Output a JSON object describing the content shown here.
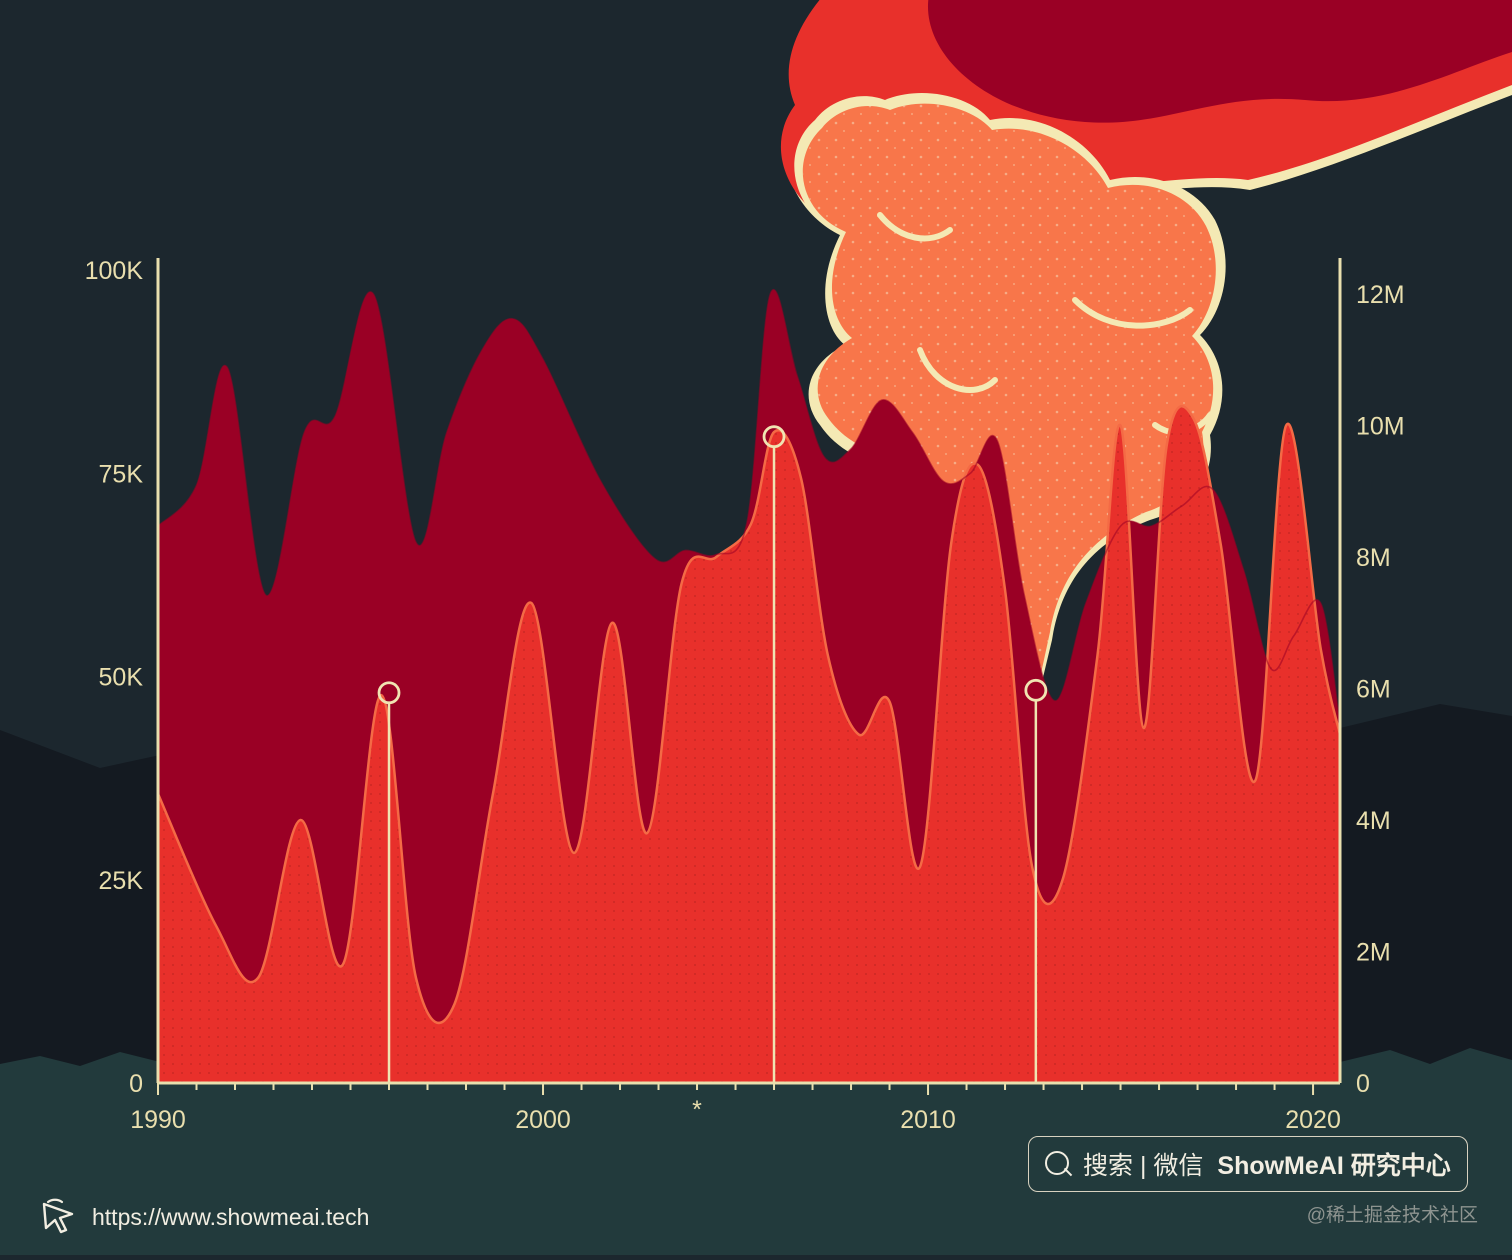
{
  "chart_data": {
    "type": "area",
    "x_axis": {
      "min": 1990,
      "max": 2020.7,
      "ticks": [
        {
          "value": 1990,
          "label": "1990"
        },
        {
          "value": 2000,
          "label": "2000"
        },
        {
          "value": 2010,
          "label": "2010"
        },
        {
          "value": 2020,
          "label": "2020"
        }
      ],
      "marker": {
        "value": 2004,
        "label": "*"
      }
    },
    "y_left": {
      "min": 0,
      "max": 100000,
      "ticks": [
        {
          "value": 0,
          "label": "0"
        },
        {
          "value": 25000,
          "label": "25K"
        },
        {
          "value": 50000,
          "label": "50K"
        },
        {
          "value": 75000,
          "label": "75K"
        },
        {
          "value": 100000,
          "label": "100K"
        }
      ]
    },
    "y_right": {
      "min": 0,
      "max": 12000000,
      "ticks": [
        {
          "value": 0,
          "label": "0"
        },
        {
          "value": 2000000,
          "label": "2M"
        },
        {
          "value": 4000000,
          "label": "4M"
        },
        {
          "value": 6000000,
          "label": "6M"
        },
        {
          "value": 8000000,
          "label": "8M"
        },
        {
          "value": 10000000,
          "label": "10M"
        },
        {
          "value": 12000000,
          "label": "12M"
        }
      ]
    },
    "series": [
      {
        "axis": "left",
        "color": "#9a0025",
        "x": [
          1990,
          1991,
          1991.8,
          1992.8,
          1993.8,
          1994.6,
          1995.6,
          1996.7,
          1997.5,
          1998.4,
          1999.2,
          2000,
          2001.5,
          2002.9,
          2003.7,
          2004.5,
          2005.3,
          2005.9,
          2006.6,
          2007.3,
          2008,
          2008.8,
          2009.6,
          2010.4,
          2011.1,
          2011.8,
          2012.5,
          2013.3,
          2014.1,
          2015,
          2015.8,
          2016.6,
          2017.4,
          2018.2,
          2018.9,
          2019.5,
          2020.2,
          2020.7
        ],
        "y": [
          68500,
          73500,
          88000,
          60000,
          80000,
          82000,
          97000,
          66500,
          80000,
          90000,
          94000,
          89000,
          74000,
          64500,
          65500,
          65000,
          69000,
          97000,
          87000,
          77000,
          78000,
          84000,
          80000,
          74000,
          75000,
          79000,
          60000,
          47000,
          59000,
          68500,
          68500,
          71000,
          73000,
          63000,
          51000,
          55000,
          59000,
          44000
        ]
      },
      {
        "axis": "right",
        "color": "#e8302b",
        "x": [
          1990,
          1991.5,
          1992.6,
          1993.7,
          1994.8,
          1995.8,
          1996.7,
          1997.7,
          1998.7,
          1999.7,
          2000.8,
          2001.8,
          2002.7,
          2003.6,
          2004.5,
          2005.4,
          2006,
          2006.7,
          2007.4,
          2008.2,
          2009,
          2009.8,
          2010.6,
          2011.3,
          2012,
          2012.7,
          2013.5,
          2014.4,
          2015,
          2015.6,
          2016.2,
          2016.9,
          2017.6,
          2018.5,
          2019.3,
          2020.2,
          2020.7
        ],
        "y": [
          4400000,
          2400000,
          1600000,
          4000000,
          1800000,
          5900000,
          1600000,
          1200000,
          4400000,
          7300000,
          3500000,
          7000000,
          3800000,
          7600000,
          8000000,
          8500000,
          9900000,
          9200000,
          6500000,
          5300000,
          5800000,
          3300000,
          8200000,
          9400000,
          7500000,
          3300000,
          3100000,
          6500000,
          10000000,
          5400000,
          9700000,
          10100000,
          8200000,
          4600000,
          10000000,
          6600000,
          5300000
        ]
      }
    ],
    "highlights": [
      {
        "x": 1996,
        "y": 48000
      },
      {
        "x": 2006,
        "y": 79500
      },
      {
        "x": 2012.8,
        "y": 48300
      }
    ]
  },
  "search_badge": {
    "label": "搜索 | 微信",
    "brand": "ShowMeAI 研究中心",
    "icon": "search-icon"
  },
  "site_link": {
    "url": "https://www.showmeai.tech",
    "icon": "cursor-icon"
  },
  "watermark": "@稀土掘金技术社区",
  "colors": {
    "background": "#1c272e",
    "axis": "#e9dfae",
    "series_dark": "#9a0025",
    "series_red": "#e8302b",
    "cloud_outer": "#e8302b",
    "cloud_inner": "#f8764a",
    "cloud_edge": "#f4e9b4"
  }
}
